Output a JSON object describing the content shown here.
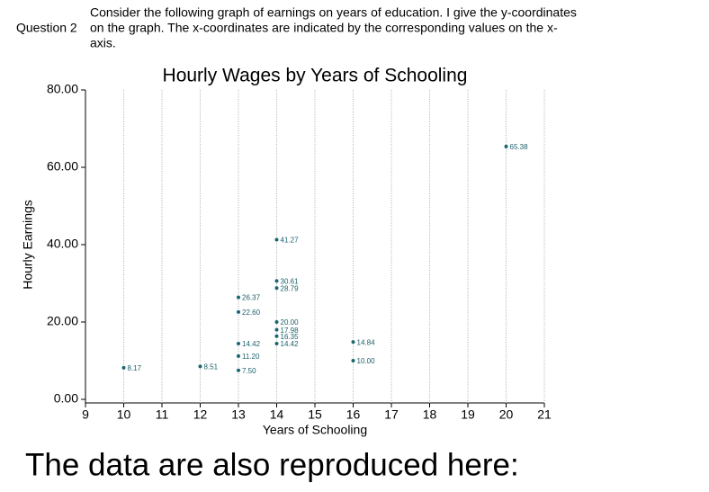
{
  "question": {
    "label": "Question 2",
    "lines": [
      "Consider the following graph of earnings on years of education.  I give the y-coordinates",
      "on the graph.  The x-coordinates are indicated by the corresponding values on the x-",
      "axis."
    ]
  },
  "chart_data": {
    "type": "scatter",
    "title": "Hourly Wages by Years of Schooling",
    "x_label": "Years of Schooling",
    "y_label": "Hourly Earnings",
    "series": [
      {
        "name": "Hourly Earnings",
        "color": "#1a6670",
        "x": [
          10,
          12,
          13,
          13,
          13,
          13,
          13,
          14,
          14,
          14,
          14,
          14,
          14,
          14,
          16,
          16,
          20
        ],
        "values": [
          8.17,
          8.51,
          26.37,
          22.6,
          14.42,
          11.2,
          7.5,
          41.27,
          30.61,
          28.79,
          20,
          17.98,
          16.35,
          14.42,
          14.84,
          10,
          65.38
        ],
        "value_labels": [
          "8.17",
          "8.51",
          "26.37",
          "22.60",
          "14.42",
          "11.20",
          "7.50",
          "41.27",
          "30.61",
          "28.79",
          "20.00",
          "17.98",
          "16.35",
          "14.42",
          "14.84",
          "10.00",
          "65.38"
        ]
      }
    ],
    "xlim": [
      9,
      21
    ],
    "xticks": [
      9,
      10,
      11,
      12,
      13,
      14,
      15,
      16,
      17,
      18,
      19,
      20,
      21
    ],
    "ylim": [
      0,
      80
    ],
    "yticks": [
      {
        "value": 0,
        "label": "0.00"
      },
      {
        "value": 20,
        "label": "20.00"
      },
      {
        "value": 40,
        "label": "40.00"
      },
      {
        "value": 60,
        "label": "60.00"
      },
      {
        "value": 80,
        "label": "80.00"
      }
    ],
    "grid": true
  },
  "footer": "The data are also reproduced here:"
}
